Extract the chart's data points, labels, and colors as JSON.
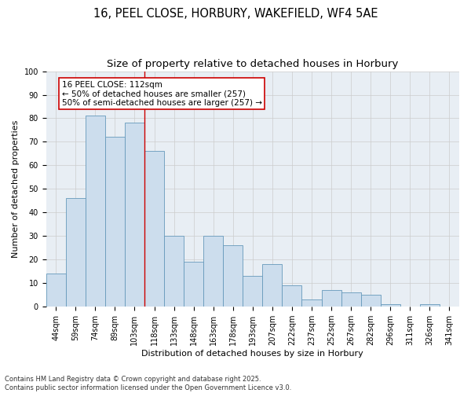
{
  "title_line1": "16, PEEL CLOSE, HORBURY, WAKEFIELD, WF4 5AE",
  "title_line2": "Size of property relative to detached houses in Horbury",
  "xlabel": "Distribution of detached houses by size in Horbury",
  "ylabel": "Number of detached properties",
  "categories": [
    "44sqm",
    "59sqm",
    "74sqm",
    "89sqm",
    "103sqm",
    "118sqm",
    "133sqm",
    "148sqm",
    "163sqm",
    "178sqm",
    "193sqm",
    "207sqm",
    "222sqm",
    "237sqm",
    "252sqm",
    "267sqm",
    "282sqm",
    "296sqm",
    "311sqm",
    "326sqm",
    "341sqm"
  ],
  "values": [
    14,
    46,
    81,
    72,
    78,
    66,
    30,
    19,
    30,
    26,
    13,
    18,
    9,
    3,
    7,
    6,
    5,
    1,
    0,
    1,
    0
  ],
  "bar_color": "#ccdded",
  "bar_edge_color": "#6699bb",
  "bar_linewidth": 0.6,
  "grid_color": "#cccccc",
  "vline_x_index": 4.5,
  "vline_color": "#cc0000",
  "annotation_text": "16 PEEL CLOSE: 112sqm\n← 50% of detached houses are smaller (257)\n50% of semi-detached houses are larger (257) →",
  "annotation_box_color": "#ffffff",
  "annotation_box_edge": "#cc0000",
  "ylim": [
    0,
    100
  ],
  "yticks": [
    0,
    10,
    20,
    30,
    40,
    50,
    60,
    70,
    80,
    90,
    100
  ],
  "bg_color": "#e8eef4",
  "footer_text": "Contains HM Land Registry data © Crown copyright and database right 2025.\nContains public sector information licensed under the Open Government Licence v3.0.",
  "title_fontsize": 10.5,
  "subtitle_fontsize": 9.5,
  "label_fontsize": 8,
  "tick_fontsize": 7,
  "footer_fontsize": 6,
  "annot_fontsize": 7.5
}
